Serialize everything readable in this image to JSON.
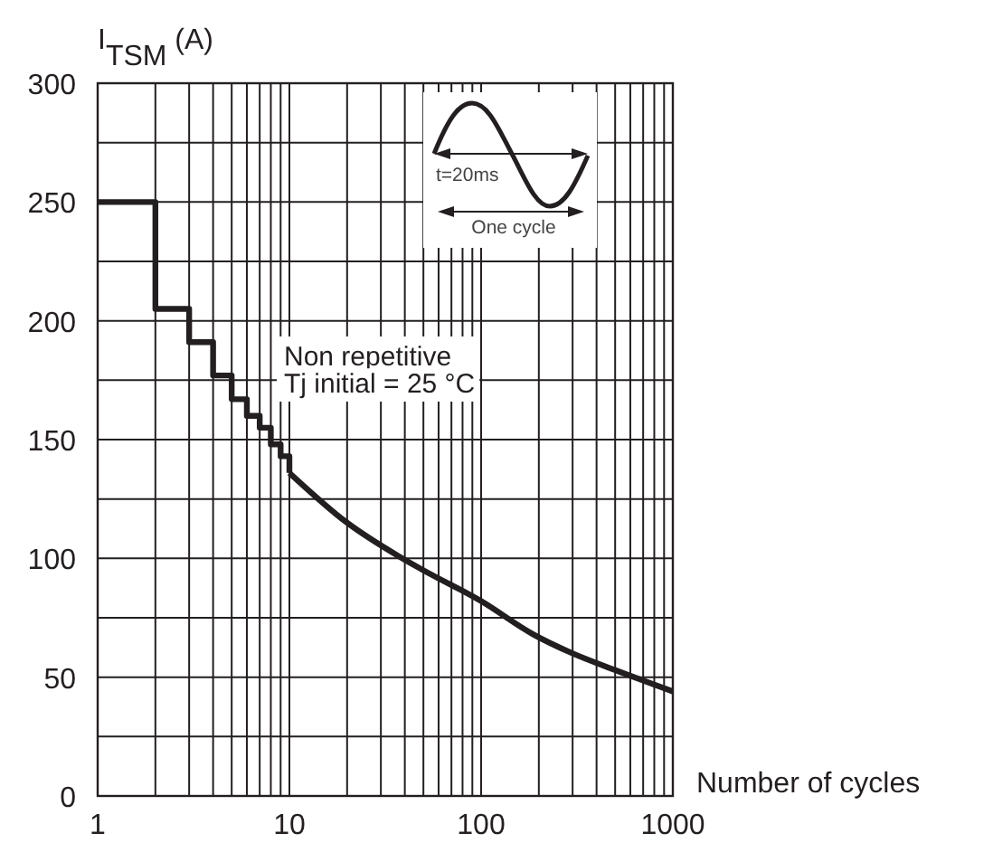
{
  "chart_data": {
    "type": "line",
    "xlabel": "Number of cycles",
    "ylabel": "I$_{TSM}$ (A)",
    "annotations": [
      "Non repetitive",
      "Tj initial = 25 °C",
      "t=20ms",
      "One cycle"
    ],
    "log": "x",
    "grid": true,
    "xlim": [
      1,
      1000
    ],
    "xticks": [
      1,
      {
        "value": 2,
        "label": null
      },
      {
        "value": 3,
        "label": null
      },
      {
        "value": 4,
        "label": null
      },
      {
        "value": 5,
        "label": null
      },
      {
        "value": 6,
        "label": null
      },
      {
        "value": 7,
        "label": null
      },
      {
        "value": 8,
        "label": null
      },
      {
        "value": 9,
        "label": null
      },
      10,
      {
        "value": 20,
        "label": null
      },
      {
        "value": 30,
        "label": null
      },
      {
        "value": 40,
        "label": null
      },
      {
        "value": 50,
        "label": null
      },
      {
        "value": 60,
        "label": null
      },
      {
        "value": 70,
        "label": null
      },
      {
        "value": 80,
        "label": null
      },
      {
        "value": 90,
        "label": null
      },
      100,
      {
        "value": 200,
        "label": null
      },
      {
        "value": 300,
        "label": null
      },
      {
        "value": 400,
        "label": null
      },
      {
        "value": 500,
        "label": null
      },
      {
        "value": 600,
        "label": null
      },
      {
        "value": 700,
        "label": null
      },
      {
        "value": 800,
        "label": null
      },
      {
        "value": 900,
        "label": null
      },
      1000
    ],
    "ylim": [
      0,
      300
    ],
    "yticks": [
      0,
      {
        "value": 25,
        "label": null
      },
      50,
      {
        "value": 75,
        "label": null
      },
      100,
      {
        "value": 125,
        "label": null
      },
      150,
      {
        "value": 175,
        "label": null
      },
      200,
      {
        "value": 225,
        "label": null
      },
      250,
      {
        "value": 275,
        "label": null
      },
      300
    ],
    "series": [
      {
        "type": "step",
        "color": "#231f20",
        "x": [
          1,
          2,
          3,
          4,
          5,
          6,
          7,
          8,
          9,
          10
        ],
        "values": [
          250,
          205,
          191,
          177,
          167,
          160,
          155,
          148,
          143,
          136
        ]
      },
      {
        "type": "line",
        "color": "#231f20",
        "x": [
          10,
          20,
          37,
          50,
          100,
          187,
          300,
          500,
          1000
        ],
        "values": [
          136,
          115,
          101,
          95,
          82,
          68,
          60,
          53,
          44
        ]
      }
    ]
  }
}
